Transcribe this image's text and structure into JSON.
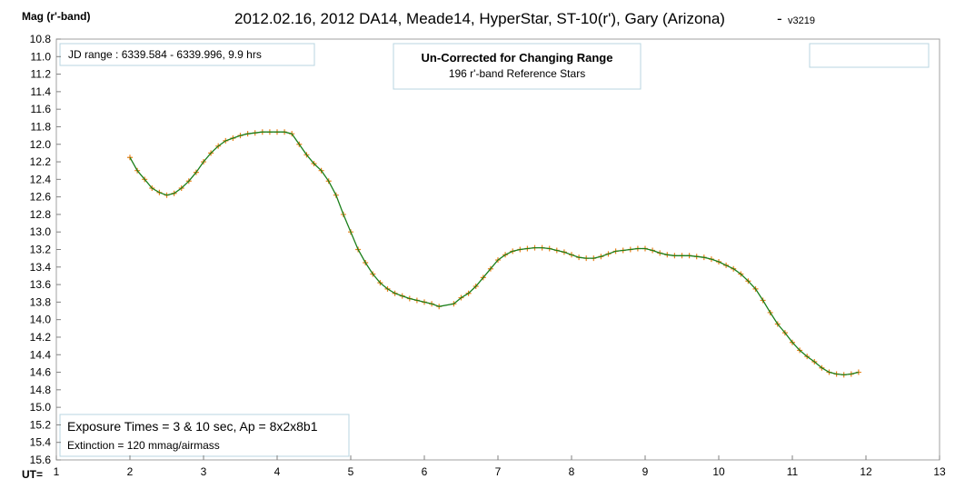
{
  "chart_data": {
    "type": "scatter",
    "title": "2012.02.16, 2012 DA14, Meade14, HyperStar, ST-10(r'), Gary (Arizona)",
    "title_separator": "-",
    "version": "v3219",
    "ylabel": "Mag (r'-band)",
    "xlabel": "UT=",
    "xlim": [
      1,
      13
    ],
    "ylim": [
      10.8,
      15.6
    ],
    "y_inverted": true,
    "grid": false,
    "x_ticks": [
      1,
      2,
      3,
      4,
      5,
      6,
      7,
      8,
      9,
      10,
      11,
      12,
      13
    ],
    "y_ticks": [
      10.8,
      11.0,
      11.2,
      11.4,
      11.6,
      11.8,
      12.0,
      12.2,
      12.4,
      12.6,
      12.8,
      13.0,
      13.2,
      13.4,
      13.6,
      13.8,
      14.0,
      14.2,
      14.4,
      14.6,
      14.8,
      15.0,
      15.2,
      15.4,
      15.6
    ],
    "colors": {
      "points": "#E8801A",
      "trend": "#1a7f1a",
      "frame": "#a0a0a0",
      "box_border": "#b8d6e0"
    },
    "series": [
      {
        "marker": "plus",
        "x": [
          2.0,
          2.1,
          2.2,
          2.3,
          2.4,
          2.5,
          2.6,
          2.7,
          2.8,
          2.9,
          3.0,
          3.1,
          3.2,
          3.3,
          3.4,
          3.5,
          3.6,
          3.7,
          3.8,
          3.9,
          4.0,
          4.1,
          4.2,
          4.3,
          4.4,
          4.5,
          4.6,
          4.7,
          4.8,
          4.9,
          5.0,
          5.1,
          5.2,
          5.3,
          5.4,
          5.5,
          5.6,
          5.7,
          5.8,
          5.9,
          6.0,
          6.1,
          6.2,
          6.4,
          6.5,
          6.6,
          6.7,
          6.8,
          6.9,
          7.0,
          7.1,
          7.2,
          7.3,
          7.4,
          7.5,
          7.6,
          7.7,
          7.8,
          7.9,
          8.0,
          8.1,
          8.2,
          8.3,
          8.4,
          8.5,
          8.6,
          8.7,
          8.8,
          8.9,
          9.0,
          9.1,
          9.2,
          9.3,
          9.4,
          9.5,
          9.6,
          9.7,
          9.8,
          9.9,
          10.0,
          10.1,
          10.2,
          10.3,
          10.4,
          10.5,
          10.6,
          10.7,
          10.8,
          10.9,
          11.0,
          11.1,
          11.2,
          11.3,
          11.4,
          11.5,
          11.6,
          11.7,
          11.8,
          11.9
        ],
        "y": [
          12.15,
          12.3,
          12.4,
          12.5,
          12.55,
          12.58,
          12.56,
          12.5,
          12.42,
          12.32,
          12.2,
          12.1,
          12.02,
          11.96,
          11.93,
          11.9,
          11.88,
          11.87,
          11.86,
          11.86,
          11.86,
          11.86,
          11.88,
          12.0,
          12.12,
          12.22,
          12.3,
          12.42,
          12.58,
          12.8,
          13.0,
          13.2,
          13.35,
          13.48,
          13.58,
          13.65,
          13.7,
          13.73,
          13.76,
          13.78,
          13.8,
          13.82,
          13.85,
          13.82,
          13.75,
          13.7,
          13.62,
          13.52,
          13.42,
          13.32,
          13.26,
          13.22,
          13.2,
          13.19,
          13.18,
          13.18,
          13.19,
          13.21,
          13.23,
          13.26,
          13.29,
          13.3,
          13.3,
          13.28,
          13.25,
          13.22,
          13.21,
          13.2,
          13.19,
          13.19,
          13.21,
          13.24,
          13.26,
          13.27,
          13.27,
          13.27,
          13.28,
          13.29,
          13.31,
          13.34,
          13.38,
          13.42,
          13.48,
          13.56,
          13.65,
          13.78,
          13.92,
          14.05,
          14.15,
          14.26,
          14.35,
          14.42,
          14.48,
          14.55,
          14.6,
          14.62,
          14.63,
          14.62,
          14.6
        ]
      }
    ],
    "annotations": {
      "jd_range": "JD range : 6339.584 - 6339.996, 9.9 hrs",
      "correction_title": "Un-Corrected for Changing Range",
      "ref_stars": "196 r'-band Reference Stars",
      "exposure": "Exposure Times = 3 & 10 sec, Ap = 8x2x8b1",
      "extinction": "Extinction = 120 mmag/airmass"
    }
  }
}
